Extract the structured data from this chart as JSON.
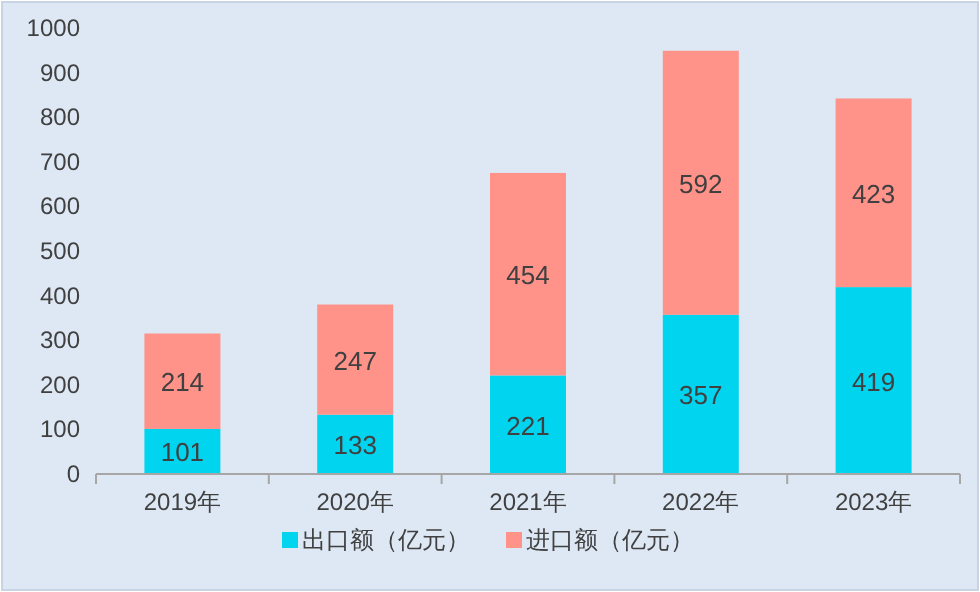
{
  "chart_data": {
    "type": "bar",
    "stacked": true,
    "categories": [
      "2019年",
      "2020年",
      "2021年",
      "2022年",
      "2023年"
    ],
    "series": [
      {
        "name": "出口额（亿元）",
        "color": "#00d4ee",
        "values": [
          101,
          133,
          221,
          357,
          419
        ]
      },
      {
        "name": "进口额（亿元）",
        "color": "#ff9289",
        "values": [
          214,
          247,
          454,
          592,
          423
        ]
      }
    ],
    "ylim": [
      0,
      1000
    ],
    "yticks": [
      0,
      100,
      200,
      300,
      400,
      500,
      600,
      700,
      800,
      900,
      1000
    ],
    "data_labels": true,
    "legend": "bottom",
    "grid": false
  }
}
